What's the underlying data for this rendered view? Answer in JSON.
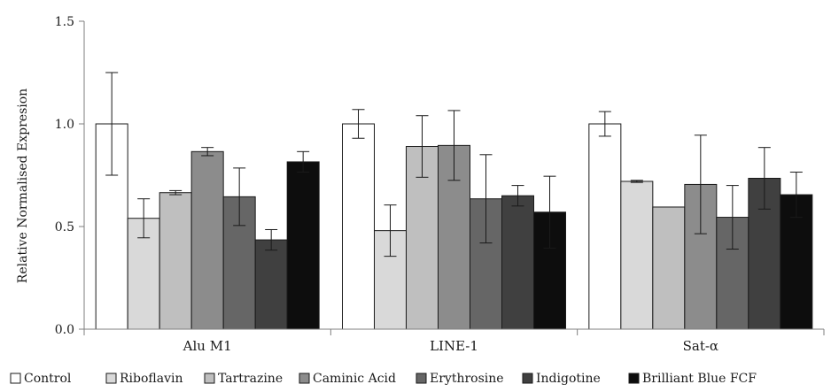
{
  "chart_data": {
    "type": "bar",
    "title": "",
    "xlabel": "",
    "ylabel": "Relative Normalised Expresion",
    "ylim": [
      0,
      1.5
    ],
    "yticks": [
      "0.0",
      "0.5",
      "1.0",
      "1.5"
    ],
    "ytick_values": [
      0,
      0.5,
      1.0,
      1.5
    ],
    "grid": false,
    "legend_position": "bottom",
    "categories": [
      "Alu M1",
      "LINE-1",
      "Sat-α"
    ],
    "series": [
      {
        "name": "Control",
        "color": "#ffffff",
        "values": [
          1.0,
          1.0,
          1.0
        ],
        "errors": [
          0.25,
          0.07,
          0.06
        ]
      },
      {
        "name": "Riboflavin",
        "color": "#d9d9d9",
        "values": [
          0.54,
          0.48,
          0.72
        ],
        "errors": [
          0.095,
          0.125,
          0.005
        ]
      },
      {
        "name": "Tartrazine",
        "color": "#bfbfbf",
        "values": [
          0.665,
          0.89,
          0.595
        ],
        "errors": [
          0.01,
          0.15,
          0.0
        ]
      },
      {
        "name": "Caminic Acid",
        "color": "#8c8c8c",
        "values": [
          0.865,
          0.895,
          0.705
        ],
        "errors": [
          0.02,
          0.17,
          0.24
        ]
      },
      {
        "name": "Erythrosine",
        "color": "#666666",
        "values": [
          0.645,
          0.635,
          0.545
        ],
        "errors": [
          0.14,
          0.215,
          0.155
        ]
      },
      {
        "name": "Indigotine",
        "color": "#404040",
        "values": [
          0.435,
          0.65,
          0.735
        ],
        "errors": [
          0.05,
          0.05,
          0.15
        ]
      },
      {
        "name": "Brilliant Blue FCF",
        "color": "#0d0d0d",
        "values": [
          0.815,
          0.57,
          0.655
        ],
        "errors": [
          0.05,
          0.175,
          0.11
        ]
      }
    ]
  }
}
